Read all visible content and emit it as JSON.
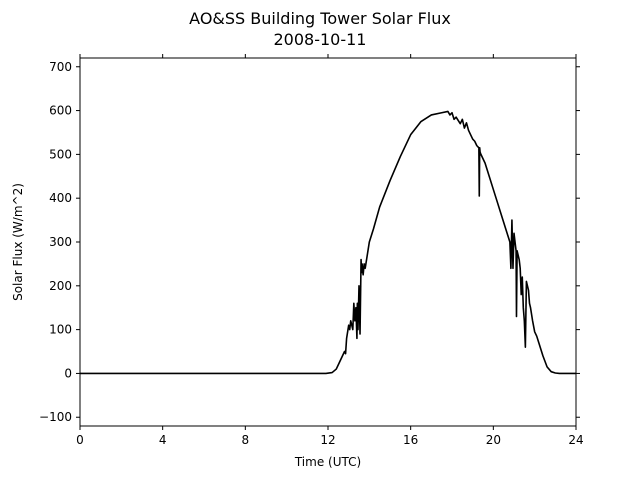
{
  "chart_data": {
    "type": "line",
    "title": "AO&SS Building Tower Solar Flux",
    "subtitle": "2008-10-11",
    "xlabel": "Time (UTC)",
    "ylabel": "Solar Flux (W/m^2)",
    "xlim": [
      0,
      24
    ],
    "ylim": [
      -120,
      720
    ],
    "xticks": [
      0,
      4,
      8,
      12,
      16,
      20,
      24
    ],
    "xtick_labels": [
      "0",
      "4",
      "8",
      "12",
      "16",
      "20",
      "24"
    ],
    "yticks": [
      -100,
      0,
      100,
      200,
      300,
      400,
      500,
      600,
      700
    ],
    "ytick_labels": [
      "−100",
      "0",
      "100",
      "200",
      "300",
      "400",
      "500",
      "600",
      "700"
    ],
    "grid": false,
    "color": "#000000",
    "series": [
      {
        "x": [
          0,
          4,
          8,
          11.9,
          12.2,
          12.4,
          12.55,
          12.7,
          12.8,
          12.85,
          12.9,
          13.0,
          13.05,
          13.1,
          13.2,
          13.25,
          13.3,
          13.35,
          13.4,
          13.42,
          13.45,
          13.5,
          13.55,
          13.6,
          13.62,
          13.65,
          13.7,
          13.75,
          13.8,
          13.9,
          14.0,
          14.2,
          14.5,
          15.0,
          15.5,
          16.0,
          16.5,
          17.0,
          17.5,
          17.8,
          17.9,
          18.0,
          18.1,
          18.2,
          18.4,
          18.5,
          18.6,
          18.7,
          18.8,
          18.9,
          19.0,
          19.1,
          19.2,
          19.3,
          19.32,
          19.34,
          19.36,
          19.4,
          19.6,
          19.8,
          20.0,
          20.2,
          20.4,
          20.6,
          20.8,
          20.85,
          20.9,
          20.95,
          21.0,
          21.05,
          21.1,
          21.12,
          21.15,
          21.2,
          21.25,
          21.3,
          21.35,
          21.4,
          21.45,
          21.5,
          21.55,
          21.6,
          21.65,
          21.7,
          21.75,
          21.8,
          21.9,
          22.0,
          22.1,
          22.2,
          22.4,
          22.6,
          22.8,
          23.0,
          23.2,
          23.5,
          23.8,
          24.0
        ],
        "y": [
          0,
          0,
          0,
          0,
          2,
          10,
          25,
          40,
          50,
          45,
          80,
          110,
          100,
          120,
          100,
          160,
          120,
          150,
          80,
          160,
          100,
          200,
          90,
          260,
          230,
          250,
          225,
          250,
          240,
          270,
          300,
          330,
          380,
          440,
          495,
          545,
          575,
          590,
          595,
          598,
          590,
          595,
          580,
          585,
          570,
          580,
          560,
          572,
          555,
          545,
          535,
          530,
          520,
          515,
          405,
          515,
          505,
          500,
          480,
          450,
          420,
          390,
          360,
          330,
          300,
          240,
          350,
          240,
          320,
          300,
          280,
          130,
          280,
          270,
          260,
          240,
          180,
          220,
          150,
          120,
          60,
          210,
          200,
          190,
          160,
          150,
          120,
          95,
          85,
          70,
          40,
          15,
          4,
          1,
          0,
          0,
          0,
          0
        ]
      }
    ]
  }
}
